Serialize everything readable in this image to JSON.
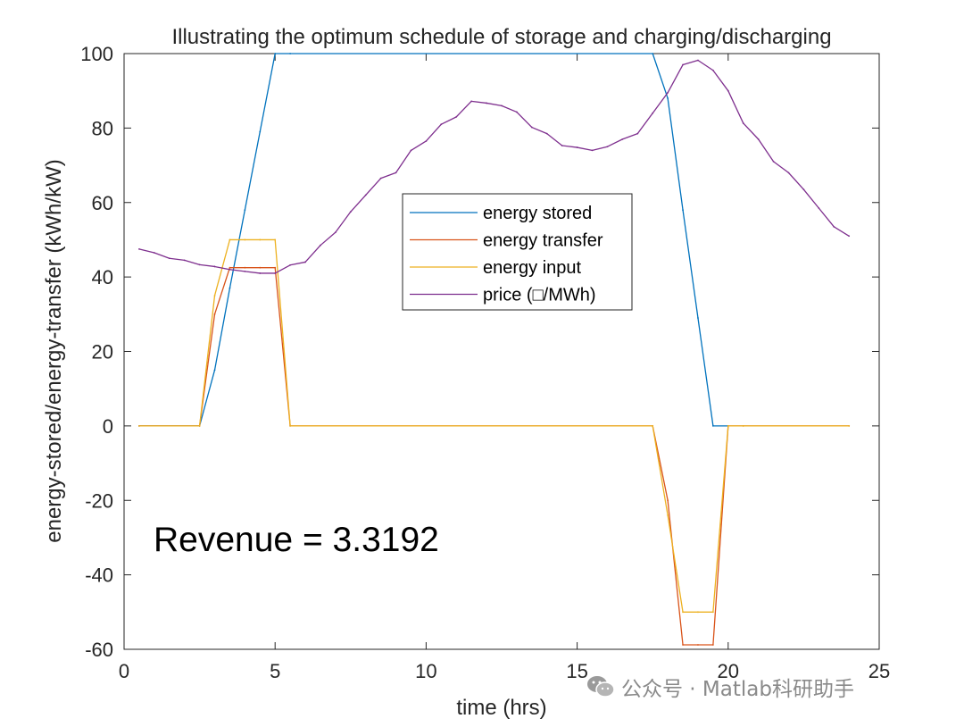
{
  "chart_data": {
    "type": "line",
    "title": "Illustrating the optimum schedule of storage and charging/discharging",
    "xlabel": "time (hrs)",
    "ylabel": "energy-stored/energy-transfer (kWh/kW)",
    "xlim": [
      0,
      25
    ],
    "ylim": [
      -60,
      100
    ],
    "xticks": [
      0,
      5,
      10,
      15,
      20,
      25
    ],
    "yticks": [
      -60,
      -40,
      -20,
      0,
      20,
      40,
      60,
      80,
      100
    ],
    "grid": false,
    "legend_position": "center",
    "annotation": "Revenue = 3.3192",
    "series": [
      {
        "name": "energy stored",
        "color": "#0072BD",
        "x": [
          0.5,
          2.5,
          3,
          3.5,
          4,
          4.5,
          5,
          5.5,
          17.5,
          18,
          18.5,
          19,
          19.5,
          20
        ],
        "y": [
          0,
          0,
          15,
          37,
          58,
          79,
          100,
          100,
          100,
          88,
          58,
          29,
          0,
          0
        ]
      },
      {
        "name": "energy transfer",
        "color": "#D95319",
        "x": [
          0.5,
          2.5,
          3,
          3.5,
          4,
          4.5,
          5,
          5.5,
          17.5,
          18,
          18.5,
          19,
          19.5,
          20,
          20.5,
          24
        ],
        "y": [
          0,
          0,
          30,
          42.5,
          42.5,
          42.5,
          42.5,
          0,
          0,
          -20,
          -58.8,
          -58.8,
          -58.8,
          0,
          0,
          0
        ]
      },
      {
        "name": "energy input",
        "color": "#EDB120",
        "x": [
          0.5,
          2.5,
          3,
          3.5,
          4,
          4.5,
          5,
          5.5,
          17.5,
          18,
          18.5,
          19,
          19.5,
          20,
          20.5,
          24
        ],
        "y": [
          0,
          0,
          35,
          50,
          50,
          50,
          50,
          0,
          0,
          -24,
          -50,
          -50,
          -50,
          0,
          0,
          0
        ]
      },
      {
        "name": "price (□/MWh)",
        "color": "#7E2F8E",
        "x": [
          0.5,
          1,
          1.5,
          2,
          2.5,
          3,
          3.5,
          4,
          4.5,
          5,
          5.5,
          6,
          6.5,
          7,
          7.5,
          8,
          8.5,
          9,
          9.5,
          10,
          10.5,
          11,
          11.5,
          12,
          12.5,
          13,
          13.5,
          14,
          14.5,
          15,
          15.5,
          16,
          16.5,
          17,
          17.5,
          18,
          18.5,
          19,
          19.5,
          20,
          20.5,
          21,
          21.5,
          22,
          22.5,
          23,
          23.5,
          24
        ],
        "y": [
          47.5,
          46.5,
          45,
          44.5,
          43.3,
          42.8,
          42,
          41.5,
          41,
          41,
          43.2,
          44,
          48.5,
          52,
          57.5,
          62,
          66.5,
          68,
          74,
          76.5,
          81,
          83,
          87.2,
          86.7,
          86,
          84.3,
          80.2,
          78.5,
          75.3,
          74.8,
          74,
          75,
          77,
          78.5,
          84,
          89.5,
          97,
          98.2,
          95.5,
          90,
          81.3,
          77,
          71,
          68,
          63.5,
          58.5,
          53.5,
          51
        ]
      }
    ]
  },
  "watermark": {
    "text": "公众号 · Matlab科研助手",
    "icon": "wechat-icon",
    "color": "#8a8a8a"
  }
}
